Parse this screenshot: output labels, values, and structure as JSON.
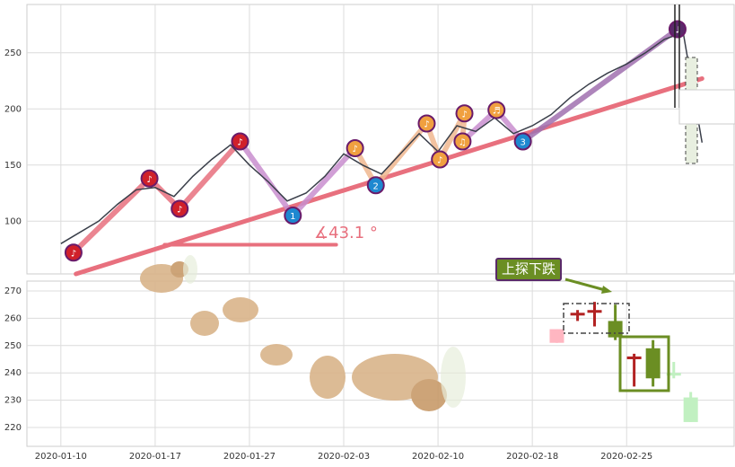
{
  "chart_data": [
    {
      "type": "line",
      "color": "#3a3f4a",
      "xlim": [
        -1.8,
        35.7
      ],
      "ylim": [
        53,
        293
      ],
      "yticks": [
        100,
        150,
        200,
        250
      ],
      "grid": true,
      "x": [
        0,
        1,
        2,
        3,
        4,
        5,
        6,
        7,
        8,
        9,
        10,
        11,
        12,
        13,
        14,
        15,
        16,
        17,
        18,
        19,
        20,
        21,
        22,
        23,
        24,
        25,
        26,
        27,
        28,
        29,
        30,
        31,
        32,
        33,
        34
      ],
      "values": [
        80,
        90,
        100,
        115,
        128,
        130,
        122,
        140,
        155,
        168,
        150,
        135,
        118,
        125,
        140,
        160,
        150,
        142,
        160,
        178,
        162,
        185,
        180,
        192,
        178,
        185,
        195,
        210,
        222,
        232,
        240,
        250,
        262,
        268,
        170
      ],
      "markers": [
        {
          "x": 0.67,
          "value": 72,
          "label": "♪",
          "color": "#d0202a",
          "line_color": "#e8707e"
        },
        {
          "x": 4.7,
          "value": 138,
          "label": "♪",
          "color": "#d0202a",
          "line_color": "#e8707e"
        },
        {
          "x": 6.3,
          "value": 111,
          "label": "♪",
          "color": "#d0202a",
          "line_color": "#e8707e"
        },
        {
          "x": 9.5,
          "value": 171,
          "label": "♪",
          "color": "#d0202a",
          "line_color": "#c98fcf"
        },
        {
          "x": 12.3,
          "value": 105,
          "label": "1",
          "color": "#1e88d0",
          "line_color": "#c98fcf"
        },
        {
          "x": 15.6,
          "value": 165,
          "label": "♪",
          "color": "#f0a040",
          "line_color": "#f0b890"
        },
        {
          "x": 16.7,
          "value": 132,
          "label": "2",
          "color": "#1e88d0",
          "line_color": "#f0b890"
        },
        {
          "x": 19.4,
          "value": 187,
          "label": "♪",
          "color": "#f0a040",
          "line_color": "#f0b890"
        },
        {
          "x": 20.1,
          "value": 155,
          "label": "♪",
          "color": "#f0a040",
          "line_color": "#f0b890"
        },
        {
          "x": 21.4,
          "value": 196,
          "label": "♪",
          "color": "#f0a040",
          "line_color": "#f0b890"
        },
        {
          "x": 21.3,
          "value": 171,
          "label": "♫",
          "color": "#f0a040",
          "line_color": "#c98fcf"
        },
        {
          "x": 23.1,
          "value": 199,
          "label": "♬",
          "color": "#f0a040",
          "line_color": "#c98fcf"
        },
        {
          "x": 24.5,
          "value": 171,
          "label": "3",
          "color": "#1e88d0",
          "line_color": "#a070b0"
        },
        {
          "x": 32.7,
          "value": 271,
          "label": "♩",
          "color": "#5a2a6a",
          "line_color": "#a070b0"
        }
      ],
      "trendlines": [
        {
          "x": [
            0.8,
            34
          ],
          "values": [
            53,
            227
          ],
          "color": "#e8707e"
        },
        {
          "x": [
            5.5,
            14.6
          ],
          "values": [
            79,
            79
          ],
          "color": "#e8707e"
        }
      ],
      "angle_label": "∡43.1 °"
    },
    {
      "type": "candlestick",
      "xlim": [
        -1.8,
        35.7
      ],
      "ylim": [
        213.1,
        273.6
      ],
      "yticks": [
        220,
        230,
        240,
        250,
        260,
        270
      ],
      "xticks": [
        {
          "value": 0,
          "label": "2020-01-10"
        },
        {
          "value": 5,
          "label": "2020-01-17"
        },
        {
          "value": 10,
          "label": "2020-01-27"
        },
        {
          "value": 15,
          "label": "2020-02-03"
        },
        {
          "value": 20,
          "label": "2020-02-10"
        },
        {
          "value": 25,
          "label": "2020-02-18"
        },
        {
          "value": 30,
          "label": "2020-02-25"
        }
      ],
      "grid": true,
      "candles": [
        {
          "x": 26.3,
          "open": 256,
          "high": 256,
          "low": 251,
          "close": 251,
          "color": "#ffb6c1"
        },
        {
          "x": 27.4,
          "open": 262,
          "high": 263,
          "low": 259,
          "close": 261,
          "color": "#b22222"
        },
        {
          "x": 28.3,
          "open": 263,
          "high": 266,
          "low": 257,
          "close": 262,
          "color": "#b22222"
        },
        {
          "x": 29.4,
          "open": 259,
          "high": 265,
          "low": 252,
          "close": 253,
          "color": "#6b8e23"
        },
        {
          "x": 30.4,
          "open": 246,
          "high": 247,
          "low": 235,
          "close": 245,
          "color": "#b22222"
        },
        {
          "x": 31.4,
          "open": 249,
          "high": 252,
          "low": 235,
          "close": 238,
          "color": "#6b8e23"
        },
        {
          "x": 32.5,
          "open": 240,
          "high": 244,
          "low": 238,
          "close": 239,
          "color": "#c1f0c1"
        },
        {
          "x": 33.4,
          "open": 231,
          "high": 233,
          "low": 222,
          "close": 222,
          "color": "#c1f0c1"
        }
      ],
      "annotation": "上探下跌"
    }
  ]
}
